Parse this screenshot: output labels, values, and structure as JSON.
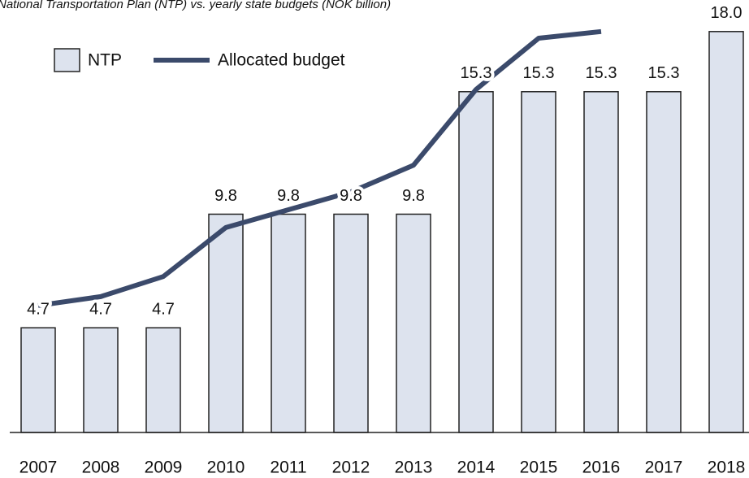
{
  "chart_data": {
    "type": "bar",
    "title": "National Transportation Plan (NTP) vs. yearly state budgets (NOK billion)",
    "categories": [
      "2007",
      "2008",
      "2009",
      "2010",
      "2011",
      "2012",
      "2013",
      "2014",
      "2015",
      "2016",
      "2017",
      "2018"
    ],
    "series": [
      {
        "name": "NTP",
        "type": "bar",
        "color": "#dde3ee",
        "values": [
          4.7,
          4.7,
          4.7,
          9.8,
          9.8,
          9.8,
          9.8,
          15.3,
          15.3,
          15.3,
          15.3,
          18.0
        ],
        "value_labels": [
          "4.7",
          "4.7",
          "4.7",
          "9.8",
          "9.8",
          "9.8",
          "9.8",
          "15.3",
          "15.3",
          "15.3",
          "15.3",
          "18.0"
        ]
      },
      {
        "name": "Allocated budget",
        "type": "line",
        "color": "#3b4a6b",
        "values": [
          5.7,
          6.1,
          7.0,
          9.2,
          10.0,
          10.8,
          12.0,
          15.4,
          17.7,
          18.0,
          null,
          null
        ]
      }
    ]
  }
}
